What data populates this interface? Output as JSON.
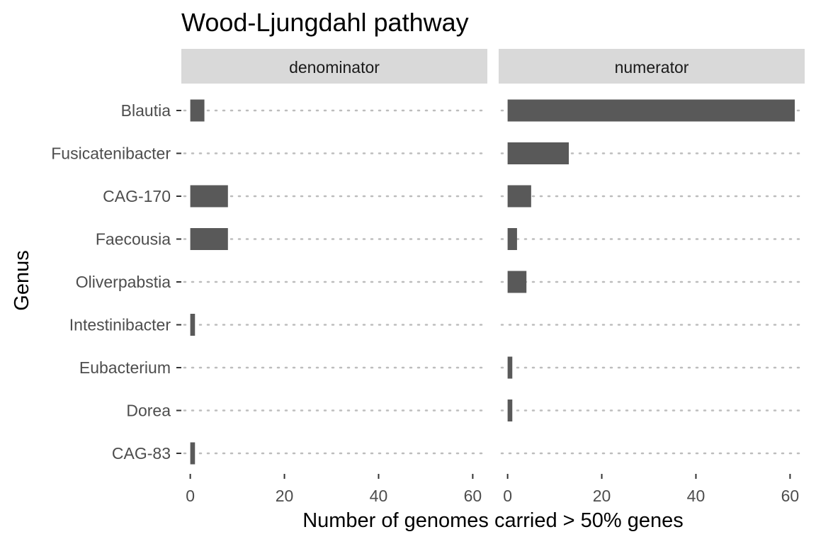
{
  "chart_data": {
    "type": "bar",
    "orientation": "horizontal",
    "title": "Wood-Ljungdahl pathway",
    "xlabel": "Number of genomes carried > 50% genes",
    "ylabel": "Genus",
    "categories": [
      "Blautia",
      "Fusicatenibacter",
      "CAG-170",
      "Faecousia",
      "Oliverpabstia",
      "Intestinibacter",
      "Eubacterium",
      "Dorea",
      "CAG-83"
    ],
    "xlim": [
      -1.9,
      63.1
    ],
    "xticks": [
      0,
      20,
      40,
      60
    ],
    "grid": "dotted horizontal",
    "bar_color": "#595959",
    "facets": [
      {
        "label": "denominator",
        "values": [
          3,
          0,
          8,
          8,
          0,
          1,
          0,
          0,
          1
        ]
      },
      {
        "label": "numerator",
        "values": [
          61,
          13,
          5,
          2,
          4,
          0,
          1,
          1,
          0
        ]
      }
    ]
  }
}
